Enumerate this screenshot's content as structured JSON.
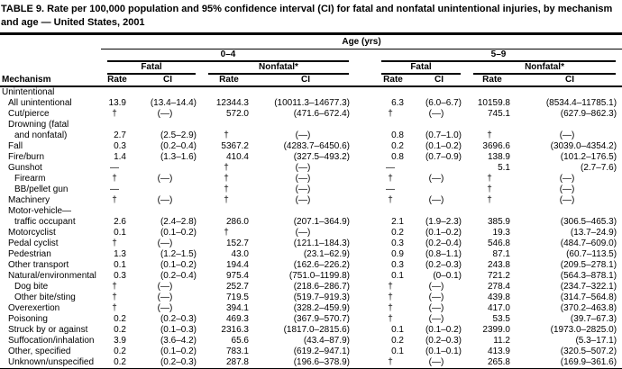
{
  "table": {
    "title": "TABLE 9. Rate per 100,000 population and 95% confidence interval (CI) for fatal and nonfatal unintentional injuries, by mechanism and age — United States, 2001",
    "header": {
      "age_label": "Age (yrs)",
      "mechanism_label": "Mechanism",
      "age_groups": [
        "0–4",
        "5–9"
      ],
      "outcomes": [
        "Fatal",
        "Nonfatal*"
      ],
      "measures": [
        "Rate",
        "CI"
      ]
    },
    "rows": [
      {
        "label": "Unintentional",
        "indent": 0,
        "cells": null
      },
      {
        "label": "All unintentional",
        "indent": 1,
        "cells": [
          "13.9",
          "(13.4–14.4)",
          "12344.3",
          "(10011.3–14677.3)",
          "6.3",
          "(6.0–6.7)",
          "10159.8",
          "(8534.4–11785.1)"
        ]
      },
      {
        "label": "Cut/pierce",
        "indent": 1,
        "cells": [
          "†",
          "(—)",
          "572.0",
          "(471.6–672.4)",
          "†",
          "(—)",
          "745.1",
          "(627.9–862.3)"
        ]
      },
      {
        "label": "Drowning (fatal",
        "indent": 1,
        "cells": null
      },
      {
        "label": "and nonfatal)",
        "indent": 2,
        "cells": [
          "2.7",
          "(2.5–2.9)",
          "†",
          "(—)",
          "0.8",
          "(0.7–1.0)",
          "†",
          "(—)"
        ]
      },
      {
        "label": "Fall",
        "indent": 1,
        "cells": [
          "0.3",
          "(0.2–0.4)",
          "5367.2",
          "(4283.7–6450.6)",
          "0.2",
          "(0.1–0.2)",
          "3696.6",
          "(3039.0–4354.2)"
        ]
      },
      {
        "label": "Fire/burn",
        "indent": 1,
        "cells": [
          "1.4",
          "(1.3–1.6)",
          "410.4",
          "(327.5–493.2)",
          "0.8",
          "(0.7–0.9)",
          "138.9",
          "(101.2–176.5)"
        ]
      },
      {
        "label": "Gunshot",
        "indent": 1,
        "cells": [
          "—",
          "",
          "†",
          "(—)",
          "—",
          "",
          "5.1",
          "(2.7–7.6)"
        ]
      },
      {
        "label": "Firearm",
        "indent": 2,
        "cells": [
          "†",
          "(—)",
          "†",
          "(—)",
          "†",
          "(—)",
          "†",
          "(—)"
        ]
      },
      {
        "label": "BB/pellet gun",
        "indent": 2,
        "cells": [
          "—",
          "",
          "†",
          "(—)",
          "—",
          "",
          "†",
          "(—)"
        ]
      },
      {
        "label": "Machinery",
        "indent": 1,
        "cells": [
          "†",
          "(—)",
          "†",
          "(—)",
          "†",
          "(—)",
          "†",
          "(—)"
        ]
      },
      {
        "label": "Motor-vehicle—",
        "indent": 1,
        "cells": null
      },
      {
        "label": "traffic occupant",
        "indent": 2,
        "cells": [
          "2.6",
          "(2.4–2.8)",
          "286.0",
          "(207.1–364.9)",
          "2.1",
          "(1.9–2.3)",
          "385.9",
          "(306.5–465.3)"
        ]
      },
      {
        "label": "Motorcyclist",
        "indent": 1,
        "cells": [
          "0.1",
          "(0.1–0.2)",
          "†",
          "(—)",
          "0.2",
          "(0.1–0.2)",
          "19.3",
          "(13.7–24.9)"
        ]
      },
      {
        "label": "Pedal cyclist",
        "indent": 1,
        "cells": [
          "†",
          "(—)",
          "152.7",
          "(121.1–184.3)",
          "0.3",
          "(0.2–0.4)",
          "546.8",
          "(484.7–609.0)"
        ]
      },
      {
        "label": "Pedestrian",
        "indent": 1,
        "cells": [
          "1.3",
          "(1.2–1.5)",
          "43.0",
          "(23.1–62.9)",
          "0.9",
          "(0.8–1.1)",
          "87.1",
          "(60.7–113.5)"
        ]
      },
      {
        "label": "Other transport",
        "indent": 1,
        "cells": [
          "0.1",
          "(0.1–0.2)",
          "194.4",
          "(162.6–226.2)",
          "0.3",
          "(0.2–0.3)",
          "243.8",
          "(209.5–278.1)"
        ]
      },
      {
        "label": "Natural/environmental",
        "indent": 1,
        "cells": [
          "0.3",
          "(0.2–0.4)",
          "975.4",
          "(751.0–1199.8)",
          "0.1",
          "(0–0.1)",
          "721.2",
          "(564.3–878.1)"
        ]
      },
      {
        "label": "Dog bite",
        "indent": 2,
        "cells": [
          "†",
          "(—)",
          "252.7",
          "(218.6–286.7)",
          "†",
          "(—)",
          "278.4",
          "(234.7–322.1)"
        ]
      },
      {
        "label": "Other bite/sting",
        "indent": 2,
        "cells": [
          "†",
          "(—)",
          "719.5",
          "(519.7–919.3)",
          "†",
          "(—)",
          "439.8",
          "(314.7–564.8)"
        ]
      },
      {
        "label": "Overexertion",
        "indent": 1,
        "cells": [
          "†",
          "(—)",
          "394.1",
          "(328.2–459.9)",
          "†",
          "(—)",
          "417.0",
          "(370.2–463.8)"
        ]
      },
      {
        "label": "Poisoning",
        "indent": 1,
        "cells": [
          "0.2",
          "(0.2–0.3)",
          "469.3",
          "(367.9–570.7)",
          "†",
          "(—)",
          "53.5",
          "(39.7–67.3)"
        ]
      },
      {
        "label": "Struck by or against",
        "indent": 1,
        "cells": [
          "0.2",
          "(0.1–0.3)",
          "2316.3",
          "(1817.0–2815.6)",
          "0.1",
          "(0.1–0.2)",
          "2399.0",
          "(1973.0–2825.0)"
        ]
      },
      {
        "label": "Suffocation/inhalation",
        "indent": 1,
        "cells": [
          "3.9",
          "(3.6–4.2)",
          "65.6",
          "(43.4–87.9)",
          "0.2",
          "(0.2–0.3)",
          "11.2",
          "(5.3–17.1)"
        ]
      },
      {
        "label": "Other, specified",
        "indent": 1,
        "cells": [
          "0.2",
          "(0.1–0.2)",
          "783.1",
          "(619.2–947.1)",
          "0.1",
          "(0.1–0.1)",
          "413.9",
          "(320.5–507.2)"
        ]
      },
      {
        "label": "Unknown/unspecified",
        "indent": 1,
        "cells": [
          "0.2",
          "(0.2–0.3)",
          "287.8",
          "(196.6–378.9)",
          "†",
          "(—)",
          "265.8",
          "(169.9–361.6)"
        ]
      }
    ]
  }
}
